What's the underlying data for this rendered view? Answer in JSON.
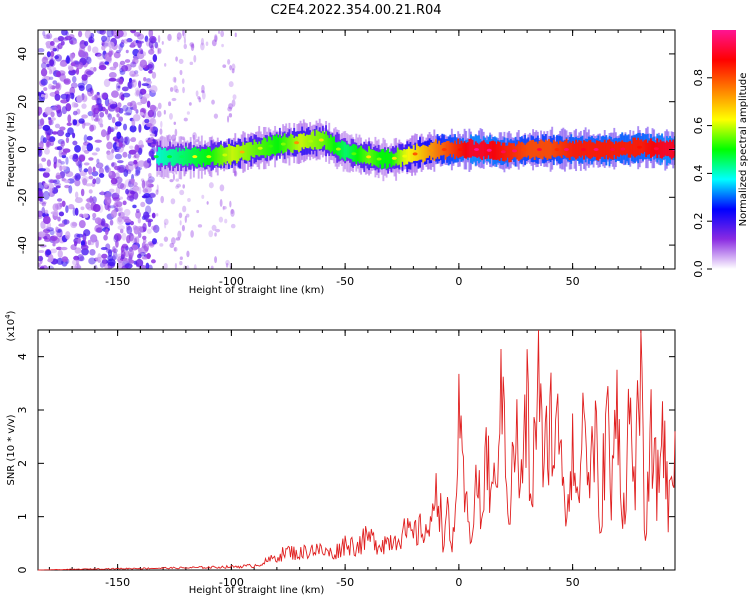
{
  "page_title": "C2E4.2022.354.00.21.R04",
  "chart_data": [
    {
      "type": "heatmap",
      "xlabel": "Height of straight line (km)",
      "ylabel": "Frequency (Hz)",
      "xlim": [
        -185,
        95
      ],
      "ylim": [
        -50,
        50
      ],
      "xticks": [
        -150,
        -100,
        -50,
        0,
        50
      ],
      "yticks": [
        -40,
        -20,
        0,
        20,
        40
      ],
      "colorbar": {
        "label": "Normalized spectral amplitude",
        "range": [
          0,
          1
        ],
        "ticks": [
          0.0,
          0.2,
          0.4,
          0.6,
          0.8
        ],
        "tick_labels": [
          "0.0",
          "0.2",
          "0.4",
          "0.6",
          "0.8"
        ],
        "colors": [
          "#ffffff",
          "#8a2be2",
          "#0000ff",
          "#00ffff",
          "#00ff00",
          "#ffff00",
          "#ff8000",
          "#ff0000",
          "#ff1493"
        ]
      },
      "noise_region": {
        "x_range": [
          -185,
          -133
        ],
        "amplitude": 0.15
      },
      "sparse_region": {
        "x_range": [
          -133,
          -98
        ],
        "amplitude": 0.05
      },
      "signal_band": {
        "x": [
          -133,
          -110,
          -100,
          -90,
          -80,
          -70,
          -60,
          -55,
          -50,
          -45,
          -40,
          -35,
          -30,
          -25,
          -20,
          -15,
          -10,
          -5,
          0,
          5,
          10,
          20,
          30,
          40,
          50,
          60,
          70,
          80,
          90,
          95
        ],
        "center_frequency": [
          -3,
          -3,
          -2,
          0,
          2,
          3,
          4,
          1,
          -1,
          -2,
          -3,
          -4,
          -4,
          -3,
          -2,
          -1,
          0,
          0,
          0,
          0,
          0,
          -1,
          0,
          0,
          0,
          0,
          0,
          1,
          0,
          0
        ],
        "amplitude": [
          0.4,
          0.5,
          0.6,
          0.55,
          0.5,
          0.6,
          0.55,
          0.5,
          0.45,
          0.5,
          0.55,
          0.5,
          0.5,
          0.6,
          0.65,
          0.7,
          0.75,
          0.8,
          0.85,
          0.9,
          0.9,
          0.85,
          0.8,
          0.8,
          0.85,
          0.85,
          0.85,
          0.85,
          0.9,
          0.9
        ]
      }
    },
    {
      "type": "line",
      "xlabel": "Height of straight line (km)",
      "ylabel": "SNR (10 * v/v)",
      "y_multiplier_label": "(x10",
      "y_multiplier_exp": "4",
      "y_multiplier_close": ")",
      "xlim": [
        -185,
        95
      ],
      "ylim": [
        0,
        4.5
      ],
      "xticks": [
        -150,
        -100,
        -50,
        0,
        50
      ],
      "yticks": [
        0,
        1,
        2,
        3,
        4
      ],
      "series": [
        {
          "color": "#e02020",
          "x": [
            -185,
            -160,
            -140,
            -120,
            -100,
            -90,
            -85,
            -80,
            -75,
            -70,
            -65,
            -60,
            -55,
            -50,
            -45,
            -40,
            -35,
            -30,
            -25,
            -20,
            -15,
            -12,
            -10,
            -7,
            -5,
            -3,
            0,
            2,
            5,
            8,
            10,
            12,
            15,
            17,
            20,
            22,
            25,
            27,
            30,
            32,
            35,
            37,
            40,
            42,
            45,
            47,
            50,
            52,
            55,
            57,
            60,
            62,
            65,
            67,
            70,
            72,
            75,
            77,
            80,
            82,
            85,
            87,
            90,
            92,
            95
          ],
          "y": [
            0.0,
            0.02,
            0.03,
            0.04,
            0.06,
            0.08,
            0.15,
            0.25,
            0.35,
            0.3,
            0.4,
            0.35,
            0.3,
            0.5,
            0.45,
            0.6,
            0.5,
            0.55,
            0.7,
            0.65,
            0.8,
            0.7,
            1.9,
            0.6,
            1.0,
            0.3,
            2.55,
            1.5,
            0.6,
            1.8,
            0.8,
            2.2,
            1.2,
            2.5,
            3.3,
            0.9,
            2.7,
            1.4,
            3.0,
            1.0,
            4.4,
            1.5,
            3.1,
            2.2,
            2.8,
            0.9,
            2.6,
            1.1,
            3.1,
            1.6,
            2.7,
            0.5,
            3.2,
            1.2,
            3.5,
            0.8,
            2.9,
            1.7,
            3.3,
            0.6,
            2.7,
            1.4,
            2.9,
            1.0,
            2.6
          ]
        }
      ]
    }
  ]
}
